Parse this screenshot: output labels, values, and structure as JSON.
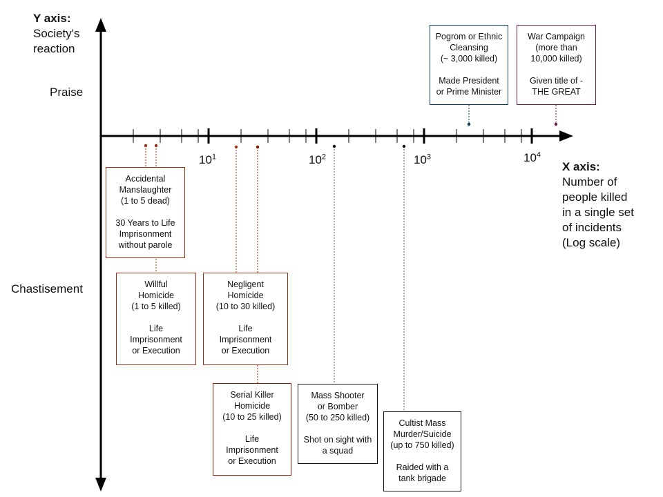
{
  "y_axis": {
    "title": "Y axis:",
    "subtitle": [
      "Society's",
      "reaction"
    ],
    "levels": [
      "Praise",
      "Chastisement"
    ]
  },
  "x_axis": {
    "title": "X axis:",
    "subtitle": [
      "Number of",
      "people killed",
      "in a single set",
      "of incidents",
      "(Log scale)"
    ],
    "ticks": [
      {
        "base": "10",
        "exp": "1"
      },
      {
        "base": "10",
        "exp": "2"
      },
      {
        "base": "10",
        "exp": "3"
      },
      {
        "base": "10",
        "exp": "4"
      }
    ]
  },
  "boxes": [
    {
      "id": "accidental",
      "color": "#a0300e",
      "lines": [
        "Accidental",
        "Manslaughter",
        "(1 to 5 dead)",
        "",
        "30 Years to Life",
        "Imprisonment",
        "without parole"
      ]
    },
    {
      "id": "willful",
      "color": "#a0300e",
      "lines": [
        "Willful",
        "Homicide",
        "(1 to 5 killed)",
        "",
        "Life",
        "Imprisonment",
        "or Execution"
      ]
    },
    {
      "id": "negligent",
      "color": "#a0300e",
      "lines": [
        "Negligent",
        "Homicide",
        "(10 to 30 killed)",
        "",
        "Life",
        "Imprisonment",
        "or Execution"
      ]
    },
    {
      "id": "serial",
      "color": "#8b1a00",
      "lines": [
        "Serial Killer",
        "Homicide",
        "(10 to 25 killed)",
        "",
        "Life",
        "Imprisonment",
        "or Execution"
      ]
    },
    {
      "id": "shooter",
      "color": "#111111",
      "lines": [
        "Mass Shooter",
        "or Bomber",
        "(50 to 250 killed)",
        "",
        "Shot on sight with",
        "a squad"
      ]
    },
    {
      "id": "cultist",
      "color": "#111111",
      "lines": [
        "Cultist Mass",
        "Murder/Suicide",
        "(up to 750 killed)",
        "",
        "Raided with a",
        "tank brigade"
      ]
    },
    {
      "id": "pogrom",
      "color": "#0b3c5d",
      "lines": [
        "Pogrom or Ethnic",
        "Cleansing",
        "(~ 3,000 killed)",
        "",
        "Made President",
        "or Prime Minister"
      ]
    },
    {
      "id": "war",
      "color": "#741b47",
      "lines": [
        "War Campaign",
        "(more than",
        "10,000 killed)",
        "",
        "Given title of -",
        "THE GREAT"
      ]
    }
  ]
}
